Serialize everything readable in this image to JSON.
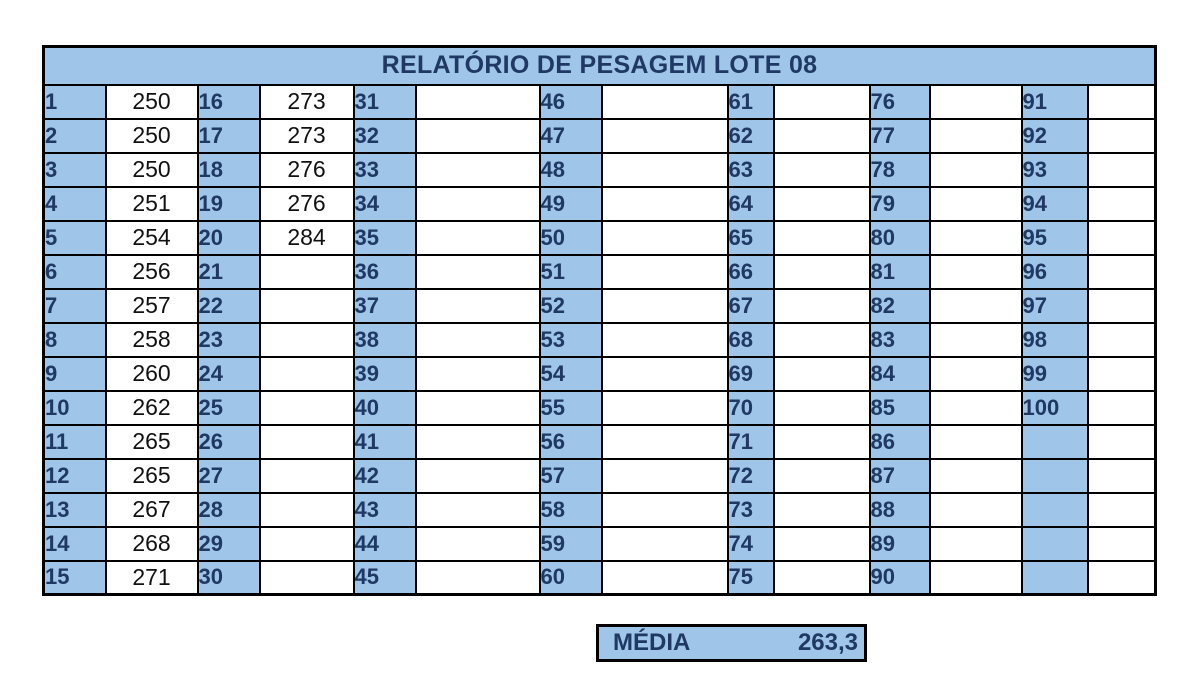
{
  "title": "RELATÓRIO DE PESAGEM LOTE 08",
  "columns": [
    {
      "start": 1,
      "count": 15,
      "values": [
        "250",
        "250",
        "250",
        "251",
        "254",
        "256",
        "257",
        "258",
        "260",
        "262",
        "265",
        "265",
        "267",
        "268",
        "271"
      ]
    },
    {
      "start": 16,
      "count": 15,
      "values": [
        "273",
        "273",
        "276",
        "276",
        "284",
        "",
        "",
        "",
        "",
        "",
        "",
        "",
        "",
        "",
        ""
      ]
    },
    {
      "start": 31,
      "count": 15,
      "values": []
    },
    {
      "start": 46,
      "count": 15,
      "values": []
    },
    {
      "start": 61,
      "count": 15,
      "values": []
    },
    {
      "start": 76,
      "count": 15,
      "values": []
    },
    {
      "start": 91,
      "count": 10,
      "values": []
    }
  ],
  "summary": {
    "label": "MÉDIA",
    "value": "263,3"
  },
  "colors": {
    "header_fill": "#9fc5e8",
    "header_text": "#1f3864",
    "border": "#000000"
  }
}
